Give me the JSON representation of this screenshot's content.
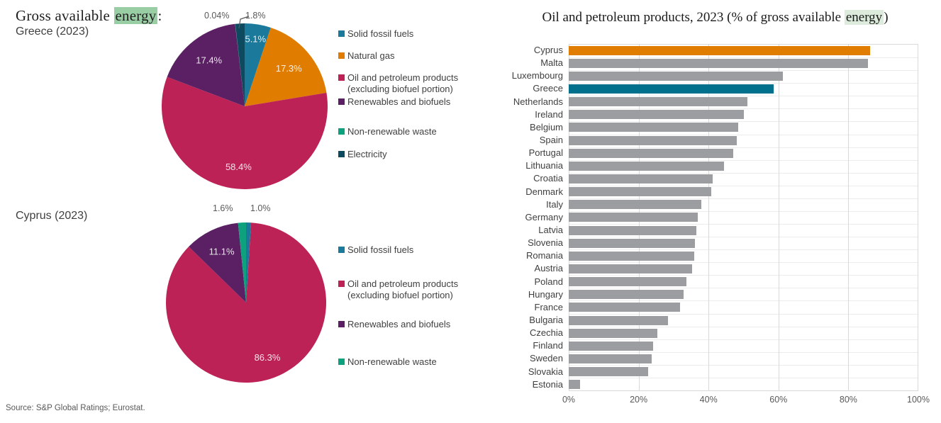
{
  "colors": {
    "crimson": "#BD2256",
    "orange": "#E07D00",
    "teal": "#1B7A9C",
    "purple": "#5A2063",
    "green": "#0DA17D",
    "navy": "#0E4A5F",
    "bar_gray": "#9B9DA1",
    "bar_teal": "#00708C",
    "bar_orange": "#E07D00",
    "grid": "#D9D9D9",
    "highlight_strong": "#99CDA4",
    "highlight_light": "#DCEBDC"
  },
  "left_panel": {
    "title_prefix": "Gross available ",
    "title_highlight": "energy",
    "title_suffix": ":",
    "greece_subtitle": "Greece (2023)",
    "cyprus_title": "Cyprus (2023)",
    "source": "Source: S&P Global Ratings; Eurostat."
  },
  "chart_data": [
    {
      "type": "pie",
      "name": "greece-energy-mix",
      "title": "Gross available energy: Greece (2023)",
      "slices": [
        {
          "label": "Solid fossil fuels",
          "value": 5.1,
          "pct_label": "5.1%",
          "color": "#1B7A9C",
          "label_placement": "inside"
        },
        {
          "label": "Natural gas",
          "value": 17.3,
          "pct_label": "17.3%",
          "color": "#E07D00",
          "label_placement": "inside"
        },
        {
          "label": "Oil and petroleum products (excluding biofuel portion)",
          "value": 58.4,
          "pct_label": "58.4%",
          "color": "#BD2256",
          "label_placement": "inside"
        },
        {
          "label": "Renewables and biofuels",
          "value": 17.4,
          "pct_label": "17.4%",
          "color": "#5A2063",
          "label_placement": "inside"
        },
        {
          "label": "Non-renewable waste",
          "value": 0.04,
          "pct_label": "0.04%",
          "color": "#0DA17D",
          "label_placement": "outside"
        },
        {
          "label": "Electricity",
          "value": 1.8,
          "pct_label": "1.8%",
          "color": "#0E4A5F",
          "label_placement": "outside"
        }
      ]
    },
    {
      "type": "pie",
      "name": "cyprus-energy-mix",
      "title": "Gross available energy: Cyprus (2023)",
      "slices": [
        {
          "label": "Solid fossil fuels",
          "value": 1.0,
          "pct_label": "1.0%",
          "color": "#1B7A9C",
          "label_placement": "outside"
        },
        {
          "label": "Oil and petroleum products (excluding biofuel portion)",
          "value": 86.3,
          "pct_label": "86.3%",
          "color": "#BD2256",
          "label_placement": "inside"
        },
        {
          "label": "Renewables and biofuels",
          "value": 11.1,
          "pct_label": "11.1%",
          "color": "#5A2063",
          "label_placement": "inside"
        },
        {
          "label": "Non-renewable waste",
          "value": 1.6,
          "pct_label": "1.6%",
          "color": "#0DA17D",
          "label_placement": "outside"
        }
      ]
    },
    {
      "type": "bar",
      "name": "oil-share-by-country",
      "title_prefix": "Oil and petroleum products, 2023 (% of gross available ",
      "title_highlight": "energy",
      "title_suffix": ")",
      "title": "Oil and petroleum products, 2023 (% of gross available energy)",
      "orientation": "horizontal",
      "xlim": [
        0,
        100
      ],
      "xticks": [
        "0%",
        "20%",
        "40%",
        "60%",
        "80%",
        "100%"
      ],
      "grid": true,
      "categories": [
        "Cyprus",
        "Malta",
        "Luxembourg",
        "Greece",
        "Netherlands",
        "Ireland",
        "Belgium",
        "Spain",
        "Portugal",
        "Lithuania",
        "Croatia",
        "Denmark",
        "Italy",
        "Germany",
        "Latvia",
        "Slovenia",
        "Romania",
        "Austria",
        "Poland",
        "Hungary",
        "France",
        "Bulgaria",
        "Czechia",
        "Finland",
        "Sweden",
        "Slovakia",
        "Estonia"
      ],
      "values": [
        86.2,
        85.6,
        61.2,
        58.6,
        51.2,
        50.0,
        48.4,
        48.0,
        47.0,
        44.5,
        41.2,
        40.8,
        37.9,
        37.0,
        36.5,
        36.2,
        36.0,
        35.3,
        33.6,
        32.8,
        31.9,
        28.4,
        25.4,
        24.2,
        23.8,
        22.8,
        3.3
      ],
      "highlight": {
        "Cyprus": "#E07D00",
        "Greece": "#00708C"
      },
      "default_bar_color": "#9B9DA1"
    }
  ]
}
